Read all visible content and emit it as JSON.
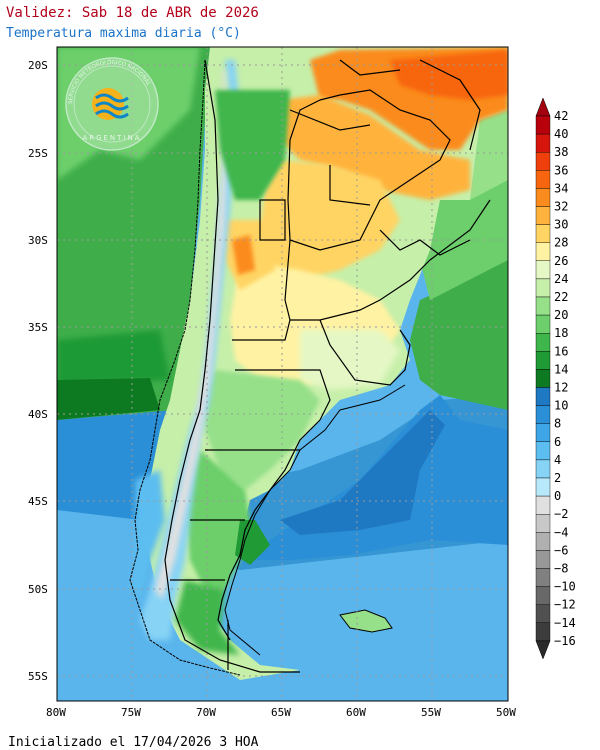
{
  "header": {
    "title": "Validez: Sab 18 de ABR de 2026",
    "subtitle": "Temperatura maxima diaria (°C)"
  },
  "footer": {
    "init_text": "Inicializado el 17/04/2026 3 HOA"
  },
  "logo": {
    "ring_text": "SERVICIO METEOROLÓGICO NACIONAL",
    "bottom_text": "ARGENTINA"
  },
  "axes": {
    "lat_labels": [
      "20S",
      "25S",
      "30S",
      "35S",
      "40S",
      "45S",
      "50S",
      "55S"
    ],
    "lat_values": [
      -20,
      -25,
      -30,
      -35,
      -40,
      -45,
      -50,
      -55
    ],
    "lon_labels": [
      "80W",
      "75W",
      "70W",
      "65W",
      "60W",
      "55W",
      "50W"
    ],
    "lon_values": [
      -80,
      -75,
      -70,
      -65,
      -60,
      -55,
      -50
    ],
    "lat_range": [
      -56.5,
      -19
    ],
    "lon_range": [
      -80,
      -50
    ]
  },
  "colorbar": {
    "labels": [
      "42",
      "40",
      "38",
      "36",
      "34",
      "32",
      "30",
      "28",
      "26",
      "24",
      "22",
      "20",
      "18",
      "16",
      "14",
      "12",
      "10",
      "8",
      "6",
      "4",
      "2",
      "0",
      "−2",
      "−4",
      "−6",
      "−8",
      "−10",
      "−12",
      "−14",
      "−16"
    ],
    "colors": [
      "#b8000c",
      "#d6150c",
      "#ee3f0c",
      "#f7660e",
      "#fb8b1c",
      "#ffb33d",
      "#ffd463",
      "#fff2a3",
      "#e4f7c4",
      "#c6efa9",
      "#96e08a",
      "#6ccf6b",
      "#3fb64b",
      "#1f9a35",
      "#0d7a22",
      "#1f78c2",
      "#2a8fd6",
      "#3ea6e6",
      "#5cbdf0",
      "#86d3f6",
      "#b8e9fb",
      "#e0e0e0",
      "#c8c8c8",
      "#b0b0b0",
      "#989898",
      "#808080",
      "#686868",
      "#505050",
      "#3c3c3c"
    ],
    "top_arrow_color": "#a30010",
    "bottom_arrow_color": "#2a2a2a"
  },
  "map_colors": {
    "sea_south": "#5ab5ec",
    "sea_mid": "#3596d3",
    "sea_north_green": "#3fae4a",
    "sea_far_north": "#5cc95a",
    "land_base": "#c6efa9",
    "land_north_hot": "#fb8b1c",
    "land_warm": "#ffd463",
    "andes_cold": "#86d3f6",
    "border_color": "#000000",
    "grid_color": "#9a9a9a"
  }
}
